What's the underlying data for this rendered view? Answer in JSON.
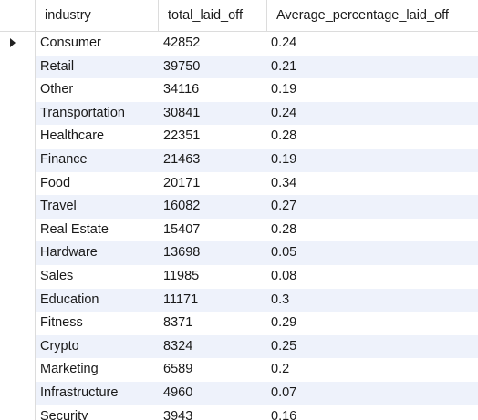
{
  "grid": {
    "columns": [
      "industry",
      "total_laid_off",
      "Average_percentage_laid_off"
    ],
    "current_row_icon": "row-pointer-icon",
    "rows": [
      {
        "industry": "Consumer",
        "total_laid_off": "42852",
        "avg": "0.24"
      },
      {
        "industry": "Retail",
        "total_laid_off": "39750",
        "avg": "0.21"
      },
      {
        "industry": "Other",
        "total_laid_off": "34116",
        "avg": "0.19"
      },
      {
        "industry": "Transportation",
        "total_laid_off": "30841",
        "avg": "0.24"
      },
      {
        "industry": "Healthcare",
        "total_laid_off": "22351",
        "avg": "0.28"
      },
      {
        "industry": "Finance",
        "total_laid_off": "21463",
        "avg": "0.19"
      },
      {
        "industry": "Food",
        "total_laid_off": "20171",
        "avg": "0.34"
      },
      {
        "industry": "Travel",
        "total_laid_off": "16082",
        "avg": "0.27"
      },
      {
        "industry": "Real Estate",
        "total_laid_off": "15407",
        "avg": "0.28"
      },
      {
        "industry": "Hardware",
        "total_laid_off": "13698",
        "avg": "0.05"
      },
      {
        "industry": "Sales",
        "total_laid_off": "11985",
        "avg": "0.08"
      },
      {
        "industry": "Education",
        "total_laid_off": "11171",
        "avg": "0.3"
      },
      {
        "industry": "Fitness",
        "total_laid_off": "8371",
        "avg": "0.29"
      },
      {
        "industry": "Crypto",
        "total_laid_off": "8324",
        "avg": "0.25"
      },
      {
        "industry": "Marketing",
        "total_laid_off": "6589",
        "avg": "0.2"
      },
      {
        "industry": "Infrastructure",
        "total_laid_off": "4960",
        "avg": "0.07"
      },
      {
        "industry": "Security",
        "total_laid_off": "3943",
        "avg": "0.16"
      }
    ]
  },
  "colors": {
    "alt_row": "#eef2fb",
    "grid_line": "#dcdcdc"
  }
}
